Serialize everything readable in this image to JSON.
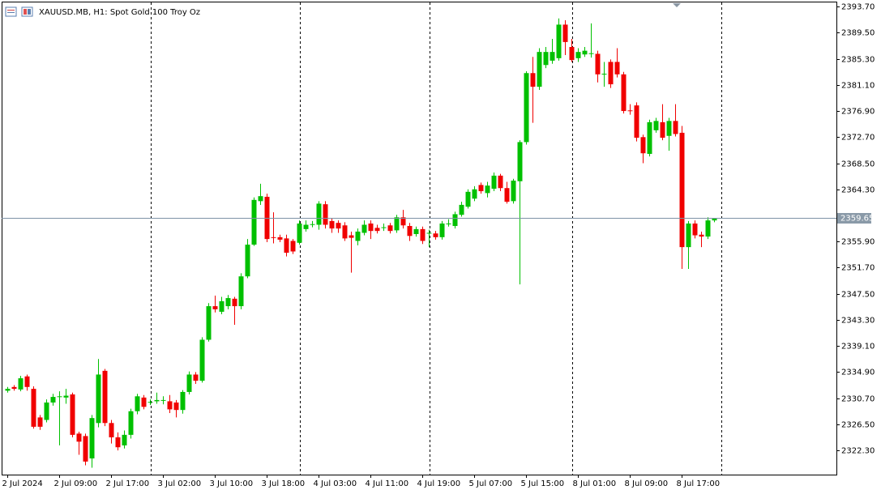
{
  "chart_data": {
    "type": "candlestick",
    "title": "XAUUSD.MB, H1:  Spot Gold 100 Troy Oz",
    "up_color": "#00c000",
    "down_color": "#f00000",
    "ylim": [
      2318.4,
      2394.5
    ],
    "yticks": [
      {
        "value": 2322.3,
        "label": "2322.30"
      },
      {
        "value": 2326.5,
        "label": "2326.50"
      },
      {
        "value": 2330.7,
        "label": "2330.70"
      },
      {
        "value": 2334.9,
        "label": "2334.90"
      },
      {
        "value": 2339.1,
        "label": "2339.10"
      },
      {
        "value": 2343.3,
        "label": "2343.30"
      },
      {
        "value": 2347.5,
        "label": "2347.50"
      },
      {
        "value": 2351.7,
        "label": "2351.70"
      },
      {
        "value": 2355.9,
        "label": "2355.90"
      },
      {
        "value": 2364.3,
        "label": "2364.30"
      },
      {
        "value": 2368.5,
        "label": "2368.50"
      },
      {
        "value": 2372.7,
        "label": "2372.70"
      },
      {
        "value": 2376.9,
        "label": "2376.90"
      },
      {
        "value": 2381.1,
        "label": "2381.10"
      },
      {
        "value": 2385.3,
        "label": "2385.30"
      },
      {
        "value": 2389.5,
        "label": "2389.50"
      },
      {
        "value": 2393.7,
        "label": "2393.70"
      }
    ],
    "xticks": [
      {
        "value": 0,
        "label": "2 Jul 2024"
      },
      {
        "value": 8,
        "label": "2 Jul 09:00"
      },
      {
        "value": 16,
        "label": "2 Jul 17:00"
      },
      {
        "value": 24,
        "label": "3 Jul 02:00"
      },
      {
        "value": 32,
        "label": "3 Jul 10:00"
      },
      {
        "value": 40,
        "label": "3 Jul 18:00"
      },
      {
        "value": 48,
        "label": "4 Jul 03:00"
      },
      {
        "value": 56,
        "label": "4 Jul 11:00"
      },
      {
        "value": 64,
        "label": "4 Jul 19:00"
      },
      {
        "value": 72,
        "label": "5 Jul 07:00"
      },
      {
        "value": 80,
        "label": "5 Jul 15:00"
      },
      {
        "value": 88,
        "label": "8 Jul 01:00"
      },
      {
        "value": 96,
        "label": "8 Jul 09:00"
      },
      {
        "value": 104,
        "label": "8 Jul 17:00"
      }
    ],
    "current_price": 2359.65,
    "open": [
      2331.9,
      2332.5,
      2332.1,
      2334.2,
      2332.2,
      2327.6,
      2327.2,
      2330.0,
      2330.9,
      2330.8,
      2331.3,
      2325.0,
      2324.6,
      2321.0,
      2326.7,
      2335.1,
      2326.7,
      2324.4,
      2323.1,
      2324.8,
      2328.6,
      2330.8,
      2330.0,
      2330.2,
      2330.3,
      2330.2,
      2330.0,
      2328.8,
      2331.7,
      2334.5,
      2333.5,
      2340.1,
      2345.5,
      2344.6,
      2345.5,
      2346.7,
      2345.5,
      2350.3,
      2355.4,
      2362.4,
      2363.1,
      2356.6,
      2356.6,
      2356.4,
      2356.0,
      2355.7,
      2357.9,
      2358.6,
      2358.6,
      2361.9,
      2359.2,
      2358.9,
      2358.5,
      2356.9,
      2356.0,
      2357.3,
      2358.8,
      2358.1,
      2358.1,
      2358.5,
      2357.7,
      2359.8,
      2358.4,
      2357.1,
      2357.9,
      2357.2,
      2357.2,
      2356.6,
      2358.7,
      2358.4,
      2360.2,
      2361.5,
      2362.8,
      2365.0,
      2363.7,
      2364.4,
      2366.5,
      2364.5,
      2362.4,
      2365.6,
      2371.9,
      2383.0,
      2380.8,
      2384.3,
      2385.0,
      2385.4,
      2390.8,
      2387.2,
      2385.4,
      2386.0,
      2386.1,
      2386.1,
      2382.8,
      2384.8,
      2384.8,
      2382.8,
      2377.0,
      2377.8,
      2372.7,
      2370.0,
      2373.8,
      2375.1,
      2372.9,
      2375.3,
      2373.4,
      2355.0,
      2358.8,
      2357.0,
      2356.7,
      2359.3
    ],
    "high": [
      2332.5,
      2332.8,
      2334.3,
      2334.5,
      2332.6,
      2328.0,
      2330.5,
      2331.4,
      2331.8,
      2332.2,
      2331.6,
      2325.3,
      2325.0,
      2328.0,
      2337.0,
      2335.4,
      2327.2,
      2325.2,
      2325.5,
      2329.0,
      2331.4,
      2331.2,
      2330.5,
      2331.6,
      2331.0,
      2331.2,
      2330.4,
      2332.0,
      2335.0,
      2334.9,
      2340.5,
      2346.0,
      2347.2,
      2347.0,
      2347.3,
      2347.0,
      2350.8,
      2356.3,
      2363.0,
      2365.2,
      2363.6,
      2360.6,
      2357.0,
      2357.0,
      2356.3,
      2359.3,
      2359.3,
      2359.2,
      2362.4,
      2362.4,
      2359.6,
      2359.3,
      2359.0,
      2357.5,
      2358.0,
      2359.3,
      2359.3,
      2358.6,
      2358.8,
      2358.9,
      2360.2,
      2361.0,
      2358.9,
      2358.3,
      2358.3,
      2357.8,
      2357.6,
      2359.2,
      2359.5,
      2360.7,
      2362.3,
      2364.3,
      2364.8,
      2365.4,
      2365.5,
      2367.0,
      2366.8,
      2365.5,
      2366.0,
      2372.2,
      2383.3,
      2385.6,
      2387.0,
      2387.2,
      2388.5,
      2391.8,
      2391.5,
      2388.5,
      2387.0,
      2387.2,
      2391.0,
      2386.6,
      2384.8,
      2385.2,
      2387.0,
      2383.2,
      2378.0,
      2378.3,
      2373.1,
      2375.5,
      2375.8,
      2378.0,
      2375.8,
      2378.0,
      2374.5,
      2359.2,
      2359.3,
      2357.5,
      2359.8,
      2359.7
    ],
    "low": [
      2331.6,
      2331.9,
      2331.8,
      2331.9,
      2325.8,
      2325.6,
      2326.8,
      2329.5,
      2323.1,
      2329.8,
      2324.4,
      2321.6,
      2319.9,
      2319.5,
      2326.0,
      2326.2,
      2323.4,
      2322.3,
      2322.6,
      2324.2,
      2328.1,
      2328.9,
      2329.6,
      2329.8,
      2329.7,
      2328.3,
      2327.6,
      2328.2,
      2331.3,
      2333.0,
      2333.2,
      2339.8,
      2344.5,
      2344.2,
      2345.0,
      2342.5,
      2345.0,
      2350.0,
      2355.2,
      2361.8,
      2355.8,
      2355.6,
      2355.8,
      2353.5,
      2353.9,
      2355.4,
      2357.5,
      2358.2,
      2357.8,
      2358.0,
      2357.3,
      2357.3,
      2356.0,
      2350.9,
      2355.3,
      2356.9,
      2356.3,
      2357.2,
      2357.6,
      2357.2,
      2357.3,
      2358.0,
      2356.0,
      2356.7,
      2355.5,
      2355.0,
      2356.2,
      2356.2,
      2358.3,
      2358.0,
      2359.9,
      2361.2,
      2362.4,
      2363.6,
      2363.0,
      2364.0,
      2364.0,
      2362.0,
      2362.0,
      2349.0,
      2371.5,
      2375.0,
      2380.3,
      2383.8,
      2384.5,
      2385.0,
      2385.9,
      2384.8,
      2384.8,
      2385.6,
      2385.5,
      2381.5,
      2380.8,
      2380.6,
      2382.3,
      2376.5,
      2376.3,
      2372.0,
      2368.5,
      2369.6,
      2373.4,
      2372.2,
      2370.5,
      2372.8,
      2351.5,
      2351.5,
      2356.4,
      2355.0,
      2356.3,
      2359.0
    ],
    "close": [
      2332.2,
      2332.2,
      2333.9,
      2332.5,
      2326.1,
      2326.1,
      2330.0,
      2330.9,
      2331.0,
      2331.1,
      2324.8,
      2323.7,
      2320.5,
      2327.5,
      2334.5,
      2326.7,
      2324.4,
      2322.8,
      2324.8,
      2328.6,
      2331.0,
      2329.3,
      2330.1,
      2330.4,
      2330.4,
      2328.9,
      2328.8,
      2331.7,
      2334.5,
      2333.5,
      2340.1,
      2345.5,
      2345.0,
      2346.3,
      2346.8,
      2345.5,
      2350.3,
      2355.4,
      2362.6,
      2363.2,
      2356.3,
      2356.5,
      2356.2,
      2354.1,
      2354.3,
      2358.8,
      2358.6,
      2358.7,
      2362.0,
      2358.6,
      2358.0,
      2358.0,
      2356.4,
      2356.5,
      2357.5,
      2358.6,
      2357.6,
      2357.6,
      2358.2,
      2357.6,
      2359.8,
      2358.5,
      2356.8,
      2357.9,
      2356.0,
      2357.3,
      2356.6,
      2358.8,
      2358.8,
      2360.3,
      2361.8,
      2363.9,
      2364.3,
      2364.0,
      2364.9,
      2366.5,
      2364.5,
      2362.3,
      2365.7,
      2371.9,
      2383.0,
      2380.8,
      2386.4,
      2386.4,
      2386.4,
      2390.8,
      2388.0,
      2385.1,
      2386.4,
      2386.6,
      2386.2,
      2382.8,
      2382.9,
      2381.2,
      2382.8,
      2376.9,
      2376.9,
      2372.6,
      2370.1,
      2375.1,
      2375.3,
      2372.6,
      2375.3,
      2373.2,
      2355.0,
      2358.8,
      2356.9,
      2356.7,
      2359.3,
      2359.6
    ]
  }
}
